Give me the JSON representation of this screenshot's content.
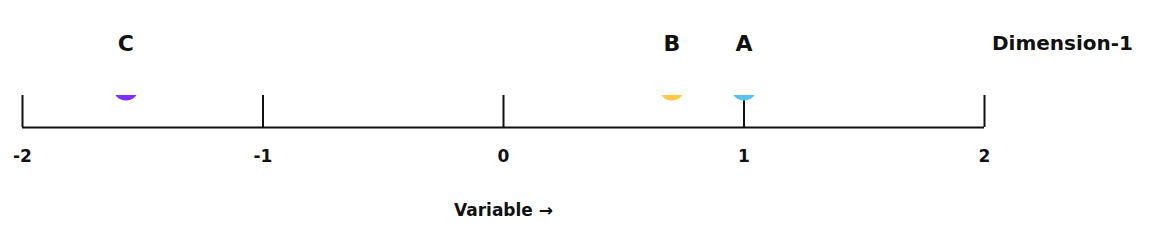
{
  "chart_data": {
    "type": "scatter",
    "title": "Dimension-1",
    "xlabel": "Variable",
    "categories": [
      "C",
      "B",
      "A"
    ],
    "x": [
      -1.57,
      0.7,
      1.0
    ],
    "colors": [
      "#7b2ff7",
      "#f9c846",
      "#5bc2ee"
    ],
    "xlim": [
      -2,
      2
    ],
    "xticks": [
      -2,
      -1,
      0,
      1,
      2
    ],
    "tick_labels": "x"
  }
}
